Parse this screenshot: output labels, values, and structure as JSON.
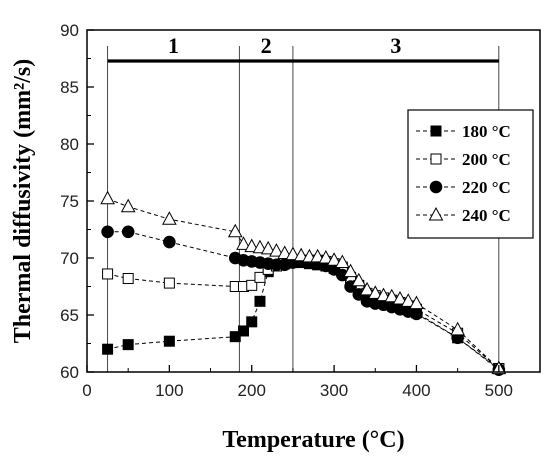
{
  "chart_data": {
    "type": "line",
    "title": "",
    "xlabel": "Temperature (°C)",
    "ylabel": "Thermal diffusivity (mm²/s)",
    "xlim": [
      0,
      550
    ],
    "ylim": [
      60,
      90
    ],
    "x_ticks": [
      0,
      100,
      200,
      300,
      400,
      500
    ],
    "y_ticks": [
      60,
      65,
      70,
      75,
      80,
      85,
      90
    ],
    "grid": false,
    "legend_position": "right",
    "regions": [
      {
        "label": "1",
        "x_start": 25,
        "x_end": 185
      },
      {
        "label": "2",
        "x_start": 185,
        "x_end": 250
      },
      {
        "label": "3",
        "x_start": 250,
        "x_end": 500
      }
    ],
    "series": [
      {
        "name": "180 °C",
        "marker": "filled-square",
        "x": [
          25,
          50,
          100,
          180,
          190,
          200,
          210,
          220,
          230,
          240,
          250,
          260,
          270,
          280,
          290,
          300,
          310,
          320,
          330,
          340,
          350,
          360,
          370,
          380,
          390,
          400,
          450,
          500
        ],
        "y": [
          62.0,
          62.4,
          62.7,
          63.1,
          63.6,
          64.4,
          66.2,
          68.8,
          69.3,
          69.5,
          69.6,
          69.6,
          69.5,
          69.4,
          69.3,
          69.1,
          68.8,
          68.0,
          67.3,
          66.8,
          66.5,
          66.3,
          66.0,
          65.8,
          65.5,
          65.2,
          63.0,
          60.3
        ]
      },
      {
        "name": "200 °C",
        "marker": "open-square",
        "x": [
          25,
          50,
          100,
          180,
          190,
          200,
          210,
          220,
          230,
          240,
          250,
          260,
          270,
          280,
          290,
          300,
          310,
          320,
          330,
          340,
          350,
          360,
          370,
          380,
          390,
          400,
          450,
          500
        ],
        "y": [
          68.6,
          68.2,
          67.8,
          67.5,
          67.5,
          67.6,
          68.3,
          69.0,
          69.3,
          69.5,
          69.7,
          69.8,
          69.8,
          69.8,
          69.7,
          69.5,
          69.2,
          68.3,
          67.6,
          66.9,
          66.7,
          66.5,
          66.3,
          66.1,
          65.8,
          65.5,
          63.4,
          60.3
        ]
      },
      {
        "name": "220 °C",
        "marker": "filled-circle",
        "x": [
          25,
          50,
          100,
          180,
          190,
          200,
          210,
          220,
          230,
          240,
          250,
          260,
          270,
          280,
          290,
          300,
          310,
          320,
          330,
          340,
          350,
          360,
          370,
          380,
          390,
          400,
          450,
          500
        ],
        "y": [
          72.3,
          72.3,
          71.4,
          70.0,
          69.8,
          69.7,
          69.6,
          69.5,
          69.4,
          69.4,
          69.6,
          69.7,
          69.6,
          69.5,
          69.3,
          69.0,
          68.5,
          67.5,
          66.8,
          66.2,
          66.0,
          65.9,
          65.7,
          65.5,
          65.3,
          65.1,
          63.0,
          60.2
        ]
      },
      {
        "name": "240 °C",
        "marker": "open-triangle",
        "x": [
          25,
          50,
          100,
          180,
          190,
          200,
          210,
          220,
          230,
          240,
          250,
          260,
          270,
          280,
          290,
          300,
          310,
          320,
          330,
          340,
          350,
          360,
          370,
          380,
          390,
          400,
          450,
          500
        ],
        "y": [
          75.2,
          74.5,
          73.4,
          72.3,
          71.2,
          71.0,
          70.9,
          70.8,
          70.6,
          70.4,
          70.3,
          70.2,
          70.1,
          70.1,
          70.0,
          69.8,
          69.6,
          68.8,
          68.0,
          67.2,
          66.9,
          66.7,
          66.6,
          66.4,
          66.2,
          66.0,
          63.7,
          60.3
        ]
      }
    ]
  }
}
